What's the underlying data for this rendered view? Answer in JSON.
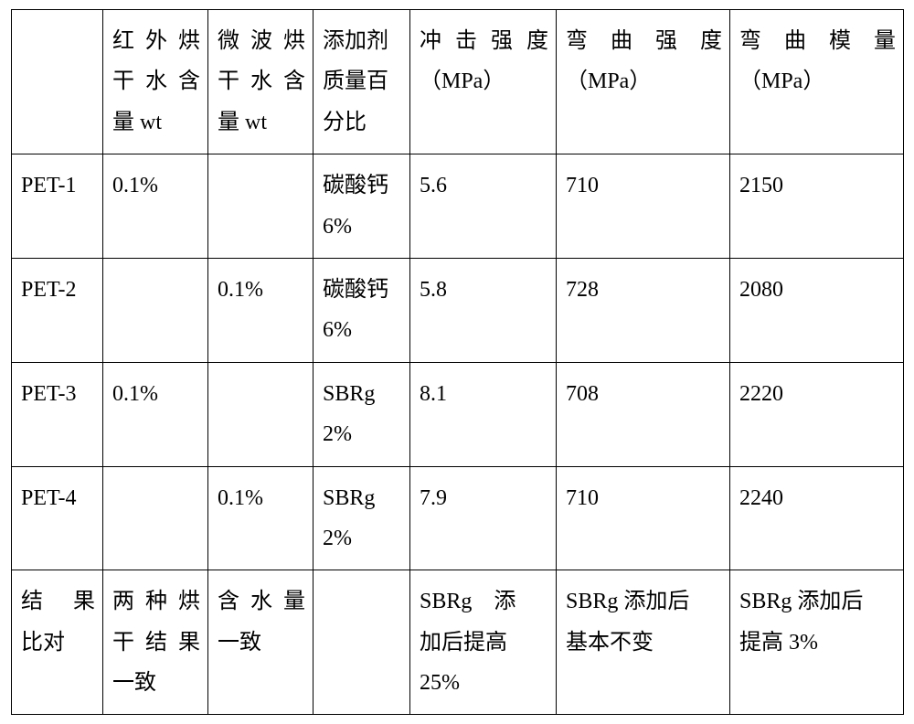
{
  "table": {
    "columns": [
      {
        "id": "sample",
        "header_lines": []
      },
      {
        "id": "ir_water",
        "header_lines": [
          "红外烘",
          "干水含"
        ],
        "header_last": "量 wt"
      },
      {
        "id": "mw_water",
        "header_lines": [
          "微波烘",
          "干水含"
        ],
        "header_last": "量 wt"
      },
      {
        "id": "additive",
        "header_lines": [
          "添加剂",
          "质量百",
          "分比"
        ]
      },
      {
        "id": "impact",
        "header_lines": [
          "冲击强度"
        ],
        "header_last": "（MPa）"
      },
      {
        "id": "bend_str",
        "header_lines": [
          "弯曲强度"
        ],
        "header_last": "（MPa）"
      },
      {
        "id": "bend_mod",
        "header_lines": [
          "弯曲模量"
        ],
        "header_last": "（MPa）"
      }
    ],
    "rows": [
      {
        "sample": "PET-1",
        "ir_water": "0.1%",
        "mw_water": "",
        "additive_l1": "碳酸钙",
        "additive_l2": "6%",
        "impact": "5.6",
        "bend_str": "710",
        "bend_mod": "2150"
      },
      {
        "sample": "PET-2",
        "ir_water": "",
        "mw_water": "0.1%",
        "additive_l1": "碳酸钙",
        "additive_l2": "6%",
        "impact": "5.8",
        "bend_str": "728",
        "bend_mod": "2080"
      },
      {
        "sample": "PET-3",
        "ir_water": "0.1%",
        "mw_water": "",
        "additive_l1": "SBRg",
        "additive_l2": "2%",
        "impact": "8.1",
        "bend_str": "708",
        "bend_mod": "2220"
      },
      {
        "sample": "PET-4",
        "ir_water": "",
        "mw_water": "0.1%",
        "additive_l1": "SBRg",
        "additive_l2": "2%",
        "impact": "7.9",
        "bend_str": "710",
        "bend_mod": "2240"
      }
    ],
    "footer": {
      "sample_lines": [
        "结果",
        "比对"
      ],
      "ir_water_lines_justify": [
        "两种烘",
        "干结果"
      ],
      "ir_water_last": "一致",
      "mw_water_lines_justify": [
        "含水量"
      ],
      "mw_water_last": "一致",
      "additive": "",
      "impact_lines": [
        "SBRg　添",
        "加后提高",
        "25%"
      ],
      "bend_str_lines": [
        "SBRg 添加后",
        "基本不变"
      ],
      "bend_mod_lines": [
        "SBRg 添加后",
        "提高 3%"
      ]
    }
  }
}
